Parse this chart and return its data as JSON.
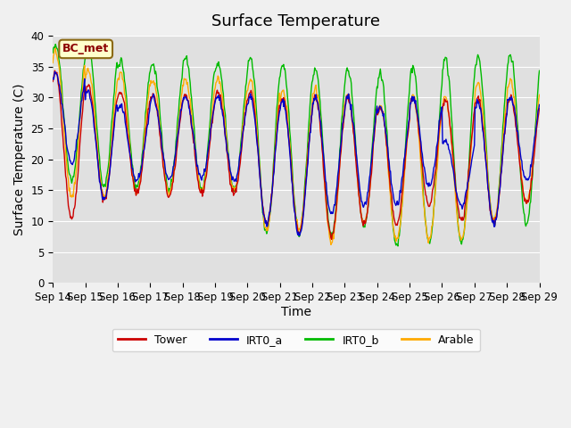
{
  "title": "Surface Temperature",
  "ylabel": "Surface Temperature (C)",
  "xlabel": "Time",
  "ylim": [
    0,
    40
  ],
  "annotation": "BC_met",
  "x_tick_labels": [
    "Sep 14",
    "Sep 15",
    "Sep 16",
    "Sep 17",
    "Sep 18",
    "Sep 19",
    "Sep 20",
    "Sep 21",
    "Sep 22",
    "Sep 23",
    "Sep 24",
    "Sep 25",
    "Sep 26",
    "Sep 27",
    "Sep 28",
    "Sep 29"
  ],
  "legend": [
    "Tower",
    "IRT0_a",
    "IRT0_b",
    "Arable"
  ],
  "colors": [
    "#cc0000",
    "#0000cc",
    "#00bb00",
    "#ffaa00"
  ],
  "bg_color": "#e0e0e0",
  "title_fontsize": 13,
  "label_fontsize": 10,
  "tick_fontsize": 8.5,
  "days": 15,
  "pts_per_day": 48,
  "day_min_tower": [
    10.5,
    13.5,
    14.5,
    14.0,
    14.5,
    14.5,
    9.5,
    8.0,
    7.5,
    9.5,
    9.5,
    12.5,
    10.0,
    9.5,
    13.0
  ],
  "day_max_tower": [
    34.0,
    32.0,
    31.0,
    30.5,
    30.5,
    31.0,
    31.0,
    30.0,
    30.0,
    30.0,
    28.5,
    30.0,
    29.5,
    30.0,
    30.0
  ],
  "day_min_irta": [
    19.5,
    13.5,
    16.5,
    16.5,
    17.0,
    16.5,
    9.5,
    7.5,
    11.0,
    12.5,
    12.5,
    15.5,
    12.5,
    9.5,
    16.5
  ],
  "day_max_irta": [
    34.0,
    31.0,
    28.5,
    30.0,
    30.0,
    30.0,
    30.0,
    29.5,
    30.0,
    30.0,
    28.5,
    30.0,
    23.0,
    29.5,
    30.0
  ],
  "day_min_irtb": [
    16.5,
    15.5,
    15.5,
    15.0,
    15.0,
    15.0,
    8.0,
    8.0,
    7.5,
    9.0,
    6.0,
    6.5,
    6.5,
    9.5,
    9.5
  ],
  "day_max_irtb": [
    38.5,
    38.5,
    36.0,
    35.5,
    36.5,
    35.5,
    36.5,
    35.5,
    34.5,
    34.5,
    34.0,
    35.0,
    36.5,
    36.5,
    37.0
  ],
  "day_min_arable": [
    14.0,
    14.0,
    14.5,
    14.5,
    15.0,
    15.0,
    8.5,
    8.5,
    6.5,
    9.5,
    7.0,
    7.0,
    7.0,
    10.0,
    13.0
  ],
  "day_max_arable": [
    37.5,
    34.5,
    34.0,
    32.5,
    33.0,
    33.0,
    33.0,
    31.0,
    31.5,
    30.5,
    29.0,
    30.5,
    30.0,
    32.5,
    32.5
  ]
}
